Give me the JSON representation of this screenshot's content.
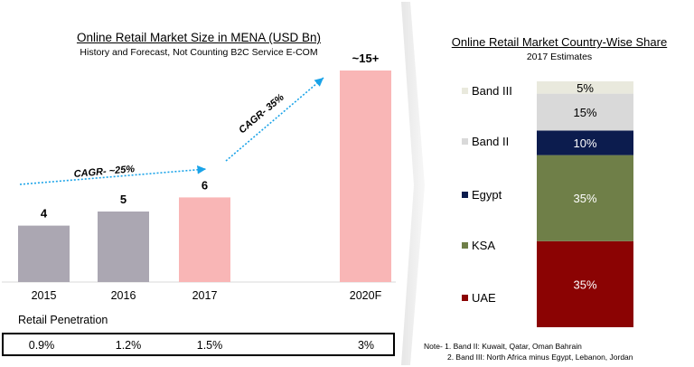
{
  "left_panel": {
    "title": "Online Retail Market Size in MENA (USD Bn)",
    "subtitle": "History and Forecast, Not Counting B2C Service E-COM",
    "cagr_history": "CAGR- ~25%",
    "cagr_forecast": "CAGR- 35%",
    "penetration_title": "Retail Penetration",
    "penetration_values": [
      "0.9%",
      "1.2%",
      "1.5%",
      "3%"
    ]
  },
  "right_panel": {
    "title": "Online Retail Market Country-Wise Share",
    "subtitle": "2017 Estimates",
    "note": "Note- 1. Band II: Kuwait, Qatar, Oman Bahrain\n           2. Band III: North Africa minus Egypt, Lebanon, Jordan"
  },
  "chart_data": [
    {
      "type": "bar",
      "title": "Online Retail Market Size in MENA (USD Bn)",
      "subtitle": "History and Forecast, Not Counting B2C Service E-COM",
      "categories": [
        "2015",
        "2016",
        "2017",
        "2020F"
      ],
      "values": [
        4,
        5,
        6,
        15
      ],
      "labels": [
        "4",
        "5",
        "6",
        "~15+"
      ],
      "colors": [
        "#aba7b2",
        "#aba7b2",
        "#f9b6b6",
        "#f9b6b6"
      ],
      "annotations": [
        "CAGR- ~25%",
        "CAGR- 35%"
      ],
      "ylim": [
        0,
        16
      ],
      "grid": false
    },
    {
      "type": "bar",
      "stacked": true,
      "title": "Online Retail Market Country-Wise Share",
      "subtitle": "2017 Estimates",
      "categories": [
        "2017"
      ],
      "series": [
        {
          "name": "UAE",
          "value": 35,
          "label": "35%",
          "color": "#8b0303",
          "text_color": "#ffffff"
        },
        {
          "name": "KSA",
          "value": 35,
          "label": "35%",
          "color": "#6f7f48",
          "text_color": "#ffffff"
        },
        {
          "name": "Egypt",
          "value": 10,
          "label": "10%",
          "color": "#0c1c4e",
          "text_color": "#ffffff"
        },
        {
          "name": "Band II",
          "value": 15,
          "label": "15%",
          "color": "#d9d9d9",
          "text_color": "#000000"
        },
        {
          "name": "Band III",
          "value": 5,
          "label": "5%",
          "color": "#e9e9dd",
          "text_color": "#000000"
        }
      ],
      "legend": "left",
      "ylim": [
        0,
        100
      ]
    }
  ]
}
